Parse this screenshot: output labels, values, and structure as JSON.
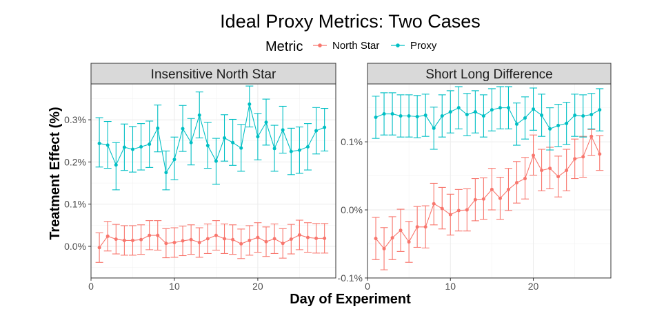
{
  "chart_data": {
    "type": "line",
    "title": "Ideal Proxy Metrics: Two Cases",
    "xlabel": "Day of Experiment",
    "ylabel": "Treatment Effect (%)",
    "legend": {
      "title": "Metric",
      "placement": "top",
      "entries": [
        "North Star",
        "Proxy"
      ]
    },
    "colors": {
      "North Star": "#f8766d",
      "Proxy": "#00bfc4"
    },
    "grid": true,
    "error_bars": true,
    "panels": [
      {
        "title": "Insensitive North Star",
        "x": [
          1,
          2,
          3,
          4,
          5,
          6,
          7,
          8,
          9,
          10,
          11,
          12,
          13,
          14,
          15,
          16,
          17,
          18,
          19,
          20,
          21,
          22,
          23,
          24,
          25,
          26,
          27,
          28
        ],
        "xlim": [
          0,
          29.35
        ],
        "ylim": [
          -0.075,
          0.385
        ],
        "xticks": [
          0,
          10,
          20
        ],
        "xtick_labels": [
          "0",
          "10",
          "20"
        ],
        "yticks": [
          0.0,
          0.1,
          0.2,
          0.3
        ],
        "ytick_labels": [
          "0.0%",
          "0.1%",
          "0.2%",
          "0.3%"
        ],
        "series": [
          {
            "name": "North Star",
            "values": [
              -0.003,
              0.024,
              0.017,
              0.014,
              0.014,
              0.016,
              0.026,
              0.026,
              0.007,
              0.009,
              0.013,
              0.016,
              0.009,
              0.018,
              0.026,
              0.018,
              0.016,
              0.006,
              0.014,
              0.021,
              0.011,
              0.018,
              0.007,
              0.017,
              0.027,
              0.021,
              0.019,
              0.019
            ],
            "lower": [
              -0.038,
              -0.011,
              -0.018,
              -0.021,
              -0.021,
              -0.019,
              -0.008,
              -0.009,
              -0.027,
              -0.026,
              -0.022,
              -0.019,
              -0.026,
              -0.017,
              -0.009,
              -0.017,
              -0.019,
              -0.029,
              -0.021,
              -0.014,
              -0.024,
              -0.017,
              -0.028,
              -0.018,
              -0.008,
              -0.014,
              -0.016,
              -0.016
            ],
            "upper": [
              0.032,
              0.059,
              0.052,
              0.049,
              0.049,
              0.051,
              0.061,
              0.061,
              0.042,
              0.044,
              0.048,
              0.051,
              0.044,
              0.053,
              0.061,
              0.053,
              0.051,
              0.041,
              0.049,
              0.056,
              0.046,
              0.053,
              0.042,
              0.052,
              0.062,
              0.056,
              0.054,
              0.054
            ]
          },
          {
            "name": "Proxy",
            "values": [
              0.244,
              0.24,
              0.193,
              0.235,
              0.23,
              0.236,
              0.242,
              0.28,
              0.175,
              0.206,
              0.279,
              0.246,
              0.311,
              0.239,
              0.202,
              0.257,
              0.246,
              0.233,
              0.337,
              0.26,
              0.294,
              0.232,
              0.276,
              0.225,
              0.228,
              0.236,
              0.274,
              0.282
            ],
            "lower": [
              0.188,
              0.185,
              0.134,
              0.18,
              0.176,
              0.181,
              0.187,
              0.224,
              0.134,
              0.158,
              0.225,
              0.193,
              0.257,
              0.185,
              0.147,
              0.202,
              0.192,
              0.178,
              0.283,
              0.205,
              0.24,
              0.178,
              0.221,
              0.17,
              0.173,
              0.181,
              0.219,
              0.226
            ],
            "upper": [
              0.305,
              0.296,
              0.246,
              0.29,
              0.284,
              0.291,
              0.297,
              0.335,
              0.226,
              0.259,
              0.334,
              0.303,
              0.366,
              0.294,
              0.256,
              0.312,
              0.301,
              0.289,
              0.38,
              0.315,
              0.349,
              0.287,
              0.332,
              0.28,
              0.283,
              0.291,
              0.329,
              0.327
            ]
          }
        ]
      },
      {
        "title": "Short Long Difference",
        "x": [
          1,
          2,
          3,
          4,
          5,
          6,
          7,
          8,
          9,
          10,
          11,
          12,
          13,
          14,
          15,
          16,
          17,
          18,
          19,
          20,
          21,
          22,
          23,
          24,
          25,
          26,
          27,
          28
        ],
        "xlim": [
          0,
          29.35
        ],
        "ylim": [
          -0.1,
          0.185
        ],
        "xticks": [
          0,
          10,
          20
        ],
        "xtick_labels": [
          "0",
          "10",
          "20"
        ],
        "yticks": [
          -0.1,
          0.0,
          0.1
        ],
        "ytick_labels": [
          "-0.1%",
          "0.0%",
          "0.1%"
        ],
        "series": [
          {
            "name": "North Star",
            "values": [
              -0.042,
              -0.057,
              -0.041,
              -0.03,
              -0.047,
              -0.025,
              -0.025,
              0.009,
              0.002,
              -0.007,
              -0.001,
              0.0,
              0.015,
              0.016,
              0.03,
              0.017,
              0.03,
              0.04,
              0.046,
              0.08,
              0.058,
              0.061,
              0.049,
              0.058,
              0.075,
              0.078,
              0.108,
              0.082
            ],
            "lower": [
              -0.073,
              -0.088,
              -0.073,
              -0.061,
              -0.077,
              -0.055,
              -0.056,
              -0.022,
              -0.028,
              -0.037,
              -0.031,
              -0.031,
              -0.016,
              -0.014,
              0.0,
              -0.014,
              -0.001,
              0.01,
              0.016,
              0.051,
              0.028,
              0.031,
              0.019,
              0.028,
              0.046,
              0.048,
              0.08,
              0.058
            ],
            "upper": [
              -0.011,
              -0.026,
              -0.01,
              0.001,
              -0.017,
              0.005,
              0.006,
              0.039,
              0.033,
              0.023,
              0.03,
              0.031,
              0.046,
              0.047,
              0.061,
              0.048,
              0.061,
              0.071,
              0.077,
              0.11,
              0.089,
              0.092,
              0.079,
              0.089,
              0.104,
              0.108,
              0.118,
              0.109
            ]
          },
          {
            "name": "Proxy",
            "values": [
              0.136,
              0.141,
              0.141,
              0.138,
              0.138,
              0.137,
              0.139,
              0.12,
              0.138,
              0.144,
              0.15,
              0.14,
              0.144,
              0.138,
              0.147,
              0.15,
              0.15,
              0.126,
              0.135,
              0.148,
              0.139,
              0.119,
              0.124,
              0.127,
              0.139,
              0.138,
              0.14,
              0.147
            ],
            "lower": [
              0.105,
              0.11,
              0.11,
              0.107,
              0.107,
              0.106,
              0.108,
              0.089,
              0.107,
              0.113,
              0.119,
              0.109,
              0.113,
              0.107,
              0.116,
              0.119,
              0.119,
              0.095,
              0.104,
              0.117,
              0.108,
              0.088,
              0.093,
              0.096,
              0.108,
              0.107,
              0.119,
              0.116
            ],
            "upper": [
              0.167,
              0.172,
              0.172,
              0.169,
              0.169,
              0.168,
              0.17,
              0.151,
              0.169,
              0.175,
              0.181,
              0.171,
              0.175,
              0.169,
              0.178,
              0.181,
              0.181,
              0.157,
              0.166,
              0.179,
              0.17,
              0.15,
              0.155,
              0.158,
              0.17,
              0.169,
              0.171,
              0.178
            ]
          }
        ]
      }
    ]
  }
}
